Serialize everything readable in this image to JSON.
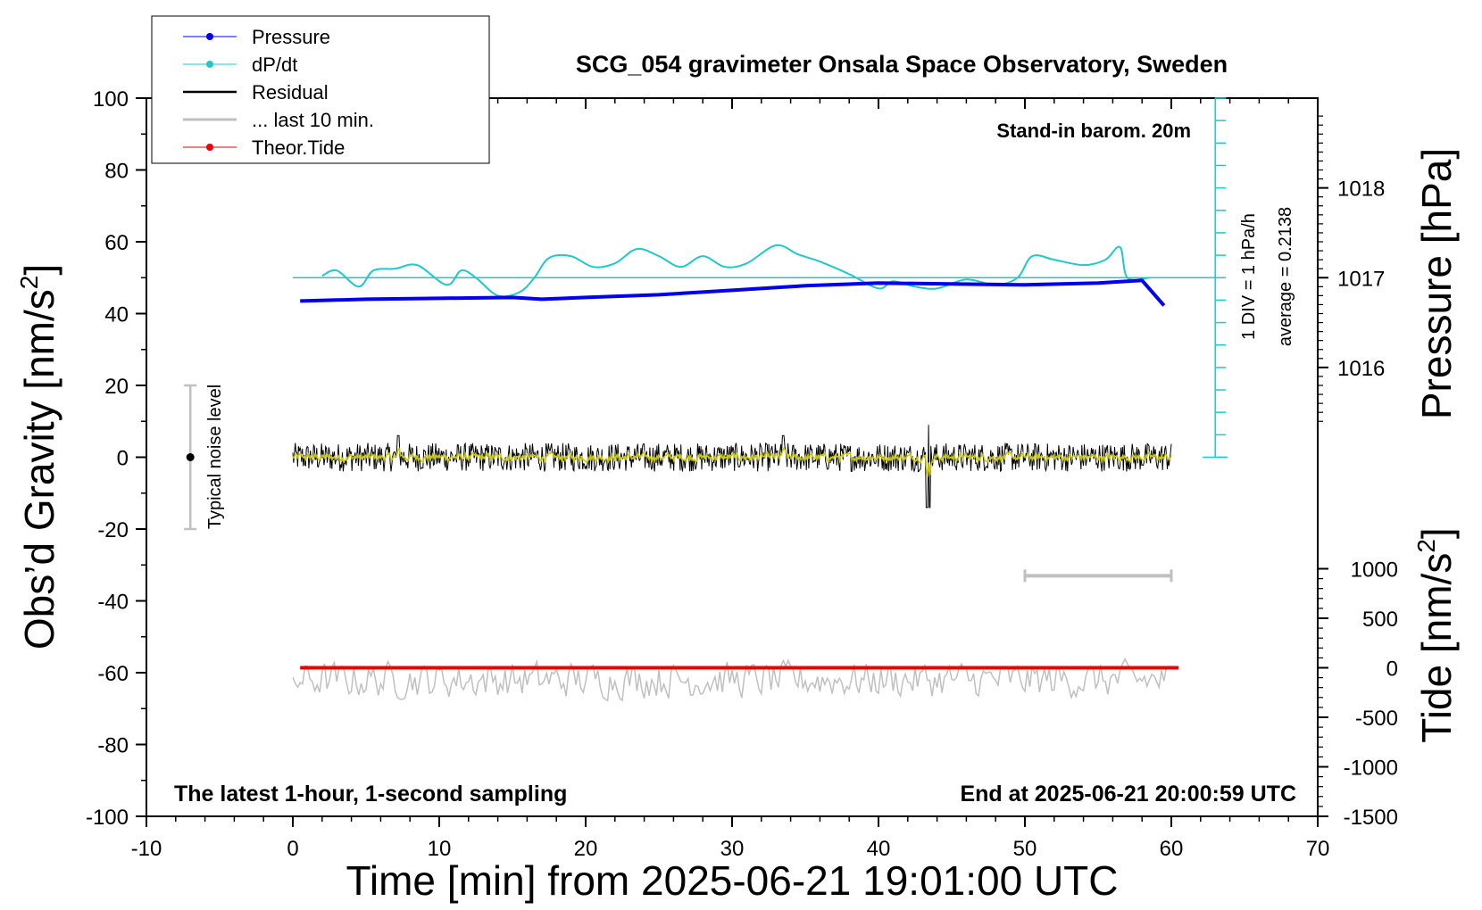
{
  "chart_data": {
    "type": "line",
    "title": "SCG_054 gravimeter Onsala Space Observatory, Sweden",
    "xlabel": "Time [min] from 2025-06-21 19:01:00 UTC",
    "ylabel_left": "Obs’d Gravity [nm/s",
    "ylabel_left_sup": "2",
    "ylabel_left_end": "]",
    "ylabel_right_top": "Pressure [hPa]",
    "ylabel_right_bottom": "Tide [nm/s",
    "ylabel_right_bottom_sup": "2",
    "ylabel_right_bottom_end": "]",
    "xlim": [
      -10,
      70
    ],
    "ylim": [
      -100,
      100
    ],
    "xticks": [
      "-10",
      "0",
      "10",
      "20",
      "30",
      "40",
      "50",
      "60",
      "70"
    ],
    "yticks_left": [
      "100",
      "80",
      "60",
      "40",
      "20",
      "0",
      "-20",
      "-40",
      "-60",
      "-80",
      "-100"
    ],
    "pressure_axis": {
      "ticks": [
        "1018",
        "1017",
        "1016"
      ],
      "values": [
        1018,
        1017,
        1016
      ],
      "gravity_at": [
        75,
        50,
        25
      ]
    },
    "tide_axis": {
      "ticks": [
        "1000",
        "500",
        "0",
        "-500",
        "-1000",
        "-1500"
      ],
      "values": [
        1000,
        500,
        0,
        -500,
        -1000,
        -1500
      ],
      "lim": [
        -1500,
        1500
      ]
    },
    "annotations": {
      "barometer": "Stand-in barom. 20m",
      "dpdt_scale": "1 DIV = 1 hPa/h",
      "dpdt_average": "average = 0.2138",
      "noise": "Typical noise level",
      "footer_left": "The latest 1-hour, 1-second sampling",
      "footer_right": "End at 2025-06-21 20:00:59 UTC"
    },
    "legend_position": "top-left",
    "legend": [
      {
        "name": "Pressure",
        "color": "#0000ee",
        "marker": true
      },
      {
        "name": "dP/dt",
        "color": "#20c8c8",
        "marker": true
      },
      {
        "name": "Residual",
        "color": "#000000",
        "marker": false
      },
      {
        "name": "... last 10 min.",
        "color": "#c0c0c0",
        "marker": false
      },
      {
        "name": "Theor.Tide",
        "color": "#ee0000",
        "marker": true
      }
    ],
    "series": [
      {
        "name": "Pressure",
        "color": "#0000ee",
        "axis": "pressure_hPa",
        "x": [
          0.5,
          5,
          10,
          15,
          17,
          20,
          25,
          30,
          35,
          40,
          45,
          50,
          55,
          58,
          59.5
        ],
        "values": [
          1016.74,
          1016.76,
          1016.77,
          1016.78,
          1016.76,
          1016.78,
          1016.81,
          1016.86,
          1016.91,
          1016.94,
          1016.93,
          1016.92,
          1016.94,
          1016.97,
          1016.69
        ]
      },
      {
        "name": "dP/dt",
        "color": "#20c8c8",
        "axis": "gravity_units",
        "x": [
          2,
          3,
          4.5,
          5.5,
          7,
          8.5,
          10.5,
          11.5,
          12.5,
          14,
          15.5,
          16.5,
          17.5,
          19,
          20.5,
          22,
          23.5,
          25,
          26.5,
          28,
          29.5,
          31,
          33,
          34.5,
          36,
          38,
          40,
          41,
          42.5,
          44,
          46,
          48,
          49.5,
          50.5,
          52,
          54,
          55.5,
          56.5,
          57,
          58.5
        ],
        "values": [
          50.5,
          52,
          47.5,
          52,
          52.5,
          53.5,
          48,
          52,
          50,
          45,
          46,
          50,
          55.5,
          56,
          53,
          54,
          58,
          56,
          53,
          56,
          53,
          54,
          59,
          56.5,
          54.5,
          51,
          47,
          49,
          47.5,
          47,
          49.5,
          48,
          50,
          56,
          55,
          53.5,
          55,
          58.5,
          50,
          50
        ]
      },
      {
        "name": "Residual",
        "color": "#000000",
        "axis": "gravity_units",
        "x": [
          0,
          60
        ],
        "values": [
          0,
          0
        ],
        "note": "1-second noise around zero"
      },
      {
        "name": "... last 10 min.",
        "color": "#c0c0c0",
        "axis": "gravity_units",
        "x": [
          0,
          60
        ],
        "values": [
          -62,
          -62
        ]
      },
      {
        "name": "Theor.Tide",
        "color": "#ee0000",
        "axis": "tide_nm_s2",
        "x": [
          0.5,
          32,
          48,
          60.5
        ],
        "values": [
          0,
          0,
          0,
          0
        ]
      }
    ],
    "noise_bar": {
      "x": -7,
      "center": 0,
      "low": -20,
      "high": 20
    },
    "last10_range": {
      "x_start": 50,
      "x_end": 60,
      "level": -33
    },
    "dpdt_baseline": 50
  }
}
